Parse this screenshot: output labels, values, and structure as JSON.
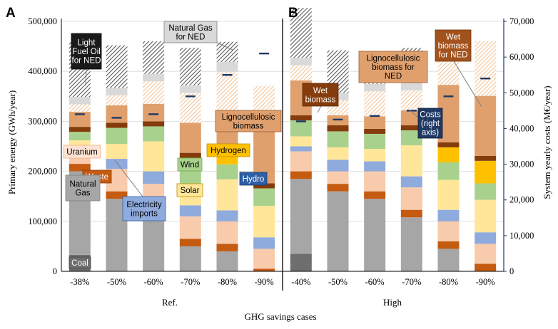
{
  "chart_data": {
    "type": "bar",
    "title": "",
    "xlabel": "GHG savings cases",
    "ylabel": "Primary energy (GWh/year)",
    "y2label": "System yearly costs (M€/year)",
    "ylim": [
      0,
      500000
    ],
    "y2lim": [
      0,
      70000
    ],
    "yticks": [
      "0",
      "100,000",
      "200,000",
      "300,000",
      "400,000",
      "500,000"
    ],
    "y2ticks": [
      "0",
      "10,000",
      "20,000",
      "30,000",
      "40,000",
      "50,000",
      "60,000",
      "70,000"
    ],
    "panels": [
      {
        "id": "A",
        "group_label": "Ref.",
        "categories": [
          "-38%",
          "-50%",
          "-60%",
          "-70%",
          "-80%",
          "-90%"
        ]
      },
      {
        "id": "B",
        "group_label": "High",
        "categories": [
          "-40%",
          "-50%",
          "-60%",
          "-70%",
          "-80%",
          "-90%"
        ]
      }
    ],
    "series": [
      {
        "name": "Coal",
        "color": "#6e6e6e",
        "values_A": [
          33000,
          0,
          0,
          0,
          0,
          0
        ],
        "values_B": [
          35000,
          0,
          0,
          0,
          0,
          0
        ]
      },
      {
        "name": "Natural Gas",
        "color": "#a6a6a6",
        "values_A": [
          167000,
          145000,
          120000,
          50000,
          40000,
          0
        ],
        "values_B": [
          150000,
          160000,
          145000,
          108000,
          45000,
          0
        ]
      },
      {
        "name": "Waste",
        "color": "#c55a11",
        "values_A": [
          15000,
          15000,
          15000,
          15000,
          15000,
          5000
        ],
        "values_B": [
          15000,
          15000,
          15000,
          15000,
          15000,
          15000
        ]
      },
      {
        "name": "Uranium",
        "color": "#f8cbad",
        "values_A": [
          15000,
          45000,
          40000,
          45000,
          45000,
          40000
        ],
        "values_B": [
          40000,
          25000,
          40000,
          45000,
          40000,
          40000
        ]
      },
      {
        "name": "Electricity imports",
        "color": "#8faadc",
        "values_A": [
          10000,
          20000,
          25000,
          22000,
          22000,
          23000
        ],
        "values_B": [
          10000,
          23000,
          20000,
          22000,
          23000,
          23000
        ]
      },
      {
        "name": "Solar",
        "color": "#ffe699",
        "values_A": [
          22000,
          30000,
          60000,
          40000,
          62000,
          63000
        ],
        "values_B": [
          20000,
          25000,
          25000,
          62000,
          60000,
          65000
        ]
      },
      {
        "name": "Wind",
        "color": "#a9d18e",
        "values_A": [
          17000,
          32000,
          30000,
          30000,
          30000,
          35000
        ],
        "values_B": [
          32000,
          32000,
          30000,
          30000,
          35000,
          33000
        ]
      },
      {
        "name": "Hydrogen",
        "color": "#ffc000",
        "values_A": [
          0,
          0,
          0,
          25000,
          25000,
          0
        ],
        "values_B": [
          0,
          0,
          0,
          0,
          30000,
          45000
        ]
      },
      {
        "name": "Lignocellulosic biomass (dark)",
        "color": "#843c0c",
        "values_A": [
          10000,
          10000,
          10000,
          10000,
          10000,
          10000
        ],
        "values_B": [
          10000,
          12000,
          10000,
          10000,
          10000,
          10000
        ]
      },
      {
        "name": "Lignocellulosic biomass",
        "color": "#dfa06e",
        "values_A": [
          30000,
          35000,
          35000,
          60000,
          60000,
          110000
        ],
        "values_B": [
          70000,
          20000,
          25000,
          30000,
          115000,
          120000
        ]
      },
      {
        "name": "Wet biomass",
        "color": "#f2c9a1",
        "values_A": [
          15000,
          20000,
          45000,
          60000,
          90000,
          85000
        ],
        "values_B": [
          30000,
          30000,
          50000,
          40000,
          70000,
          110000
        ]
      },
      {
        "name": "Natural Gas for NED",
        "color": "#d9d9d9",
        "values_A": [
          15000,
          15000,
          15000,
          15000,
          20000,
          0
        ],
        "values_B": [
          15000,
          15000,
          15000,
          15000,
          15000,
          0
        ]
      },
      {
        "name": "Light Fuel Oil for NED",
        "color": "#595959",
        "values_A": [
          110000,
          85000,
          65000,
          75000,
          40000,
          0
        ],
        "values_B": [
          100000,
          85000,
          25000,
          70000,
          20000,
          0
        ]
      }
    ],
    "costs_right_axis": {
      "name": "Costs (right axis)",
      "color": "#1f3864",
      "values_A": [
        44000,
        43000,
        44000,
        49000,
        55000,
        61000
      ],
      "values_B": [
        42000,
        42500,
        43500,
        45000,
        49000,
        54000
      ]
    },
    "annotations": [
      {
        "text": "Light Fuel Oil for NED",
        "lines": [
          "Light",
          "Fuel Oil",
          "for NED"
        ]
      },
      {
        "text": "Natural Gas for NED",
        "lines": [
          "Natural Gas",
          "for NED"
        ]
      },
      {
        "text": "Lignocellulosic biomass",
        "lines": [
          "Lignocellulosic",
          "biomass"
        ]
      },
      {
        "text": "Hydrogen",
        "lines": [
          "Hydrogen"
        ]
      },
      {
        "text": "Wind",
        "lines": [
          "Wind"
        ]
      },
      {
        "text": "Hydro",
        "lines": [
          "Hydro"
        ]
      },
      {
        "text": "Solar",
        "lines": [
          "Solar"
        ]
      },
      {
        "text": "Uranium",
        "lines": [
          "Uranium"
        ]
      },
      {
        "text": "Waste",
        "lines": [
          "Waste"
        ]
      },
      {
        "text": "Natural Gas",
        "lines": [
          "Natural",
          "Gas"
        ]
      },
      {
        "text": "Electricity imports",
        "lines": [
          "Electricity",
          "imports"
        ]
      },
      {
        "text": "Coal",
        "lines": [
          "Coal"
        ]
      },
      {
        "text": "Wet biomass",
        "lines": [
          "Wet",
          "biomass"
        ]
      },
      {
        "text": "Costs (right axis)",
        "lines": [
          "Costs",
          "(right",
          "axis)"
        ]
      },
      {
        "text": "Lignocellulosic biomass for NED",
        "lines": [
          "Lignocellulosic",
          "biomass for",
          "NED"
        ]
      },
      {
        "text": "Wet biomass for NED",
        "lines": [
          "Wet",
          "biomass",
          "for NED"
        ]
      }
    ]
  }
}
